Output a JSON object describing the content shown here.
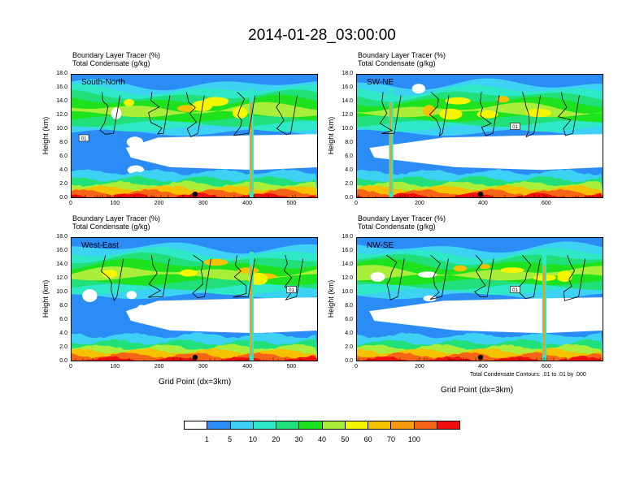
{
  "title": "2014-01-28_03:00:00",
  "colorbar": {
    "levels": [
      "1",
      "5",
      "10",
      "20",
      "30",
      "40",
      "50",
      "60",
      "70",
      "100"
    ],
    "colors": [
      "#ffffff",
      "#2b8cf5",
      "#3dd2f4",
      "#2fe8c8",
      "#21e07a",
      "#1ee21e",
      "#a8ee3a",
      "#f6f600",
      "#f6c200",
      "#f89a10",
      "#f66418",
      "#ef0f0f"
    ]
  },
  "footnote": "Total Condensate Contours: .01 to .01 by .000",
  "chart_data": [
    {
      "type": "heatmap",
      "panel": "South-North",
      "title_line1": "Boundary Layer Tracer   (%)",
      "title_line2": "Total Condensate   (g/kg)",
      "ylabel": "Height (km)",
      "xlabel": "",
      "yticks": [
        "0.0",
        "2.0",
        "4.0",
        "6.0",
        "8.0",
        "10.0",
        "12.0",
        "14.0",
        "16.0",
        "18.0"
      ],
      "ylim": [
        0,
        18
      ],
      "xticks": [
        "0",
        "100",
        "200",
        "300",
        "400",
        "500"
      ],
      "xlim": [
        0,
        560
      ],
      "contour_label": "01"
    },
    {
      "type": "heatmap",
      "panel": "SW-NE",
      "title_line1": "Boundary Layer Tracer   (%)",
      "title_line2": "Total Condensate   (g/kg)",
      "ylabel": "Height (km)",
      "xlabel": "",
      "yticks": [
        "0.0",
        "2.0",
        "4.0",
        "6.0",
        "8.0",
        "10.0",
        "12.0",
        "14.0",
        "16.0",
        "18.0"
      ],
      "ylim": [
        0,
        18
      ],
      "xticks": [
        "0",
        "200",
        "400",
        "600"
      ],
      "xlim": [
        0,
        780
      ],
      "contour_label": "01"
    },
    {
      "type": "heatmap",
      "panel": "West-East",
      "title_line1": "Boundary Layer Tracer   (%)",
      "title_line2": "Total Condensate   (g/kg)",
      "ylabel": "Height (km)",
      "xlabel": "Grid Point (dx=3km)",
      "yticks": [
        "0.0",
        "2.0",
        "4.0",
        "6.0",
        "8.0",
        "10.0",
        "12.0",
        "14.0",
        "16.0",
        "18.0"
      ],
      "ylim": [
        0,
        18
      ],
      "xticks": [
        "0",
        "100",
        "200",
        "300",
        "400",
        "500"
      ],
      "xlim": [
        0,
        560
      ],
      "contour_label": "01"
    },
    {
      "type": "heatmap",
      "panel": "NW-SE",
      "title_line1": "Boundary Layer Tracer   (%)",
      "title_line2": "Total Condensate   (g/kg)",
      "ylabel": "Height (km)",
      "xlabel": "Grid Point (dx=3km)",
      "yticks": [
        "0.0",
        "2.0",
        "4.0",
        "6.0",
        "8.0",
        "10.0",
        "12.0",
        "14.0",
        "16.0",
        "18.0"
      ],
      "ylim": [
        0,
        18
      ],
      "xticks": [
        "0",
        "200",
        "400",
        "600"
      ],
      "xlim": [
        0,
        780
      ],
      "contour_label": "01"
    }
  ]
}
